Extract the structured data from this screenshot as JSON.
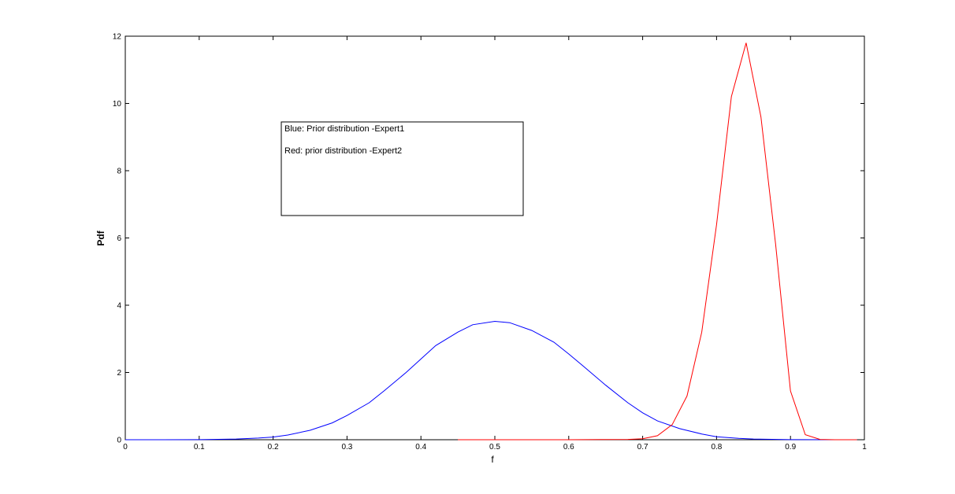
{
  "chart_data": {
    "type": "line",
    "title": "",
    "xlabel": "f",
    "ylabel": "Pdf",
    "xlim": [
      0,
      1
    ],
    "ylim": [
      0,
      12
    ],
    "grid": false,
    "xticks": [
      0,
      0.1,
      0.2,
      0.3,
      0.4,
      0.5,
      0.6,
      0.7,
      0.8,
      0.9,
      1
    ],
    "xtick_labels": [
      "0",
      "0.1",
      "0.2",
      "0.3",
      "0.4",
      "0.5",
      "0.6",
      "0.7",
      "0.8",
      "0.9",
      "1"
    ],
    "yticks": [
      0,
      2,
      4,
      6,
      8,
      10,
      12
    ],
    "ytick_labels": [
      "0",
      "2",
      "4",
      "6",
      "8",
      "10",
      "12"
    ],
    "annotation": {
      "lines": [
        "Blue: Prior distribution -Expert1",
        "Red: prior distribution -Expert2"
      ]
    },
    "series": [
      {
        "color": "#0000ff",
        "x": [
          0,
          0.05,
          0.1,
          0.15,
          0.18,
          0.2,
          0.22,
          0.25,
          0.28,
          0.3,
          0.33,
          0.35,
          0.38,
          0.4,
          0.42,
          0.45,
          0.47,
          0.5,
          0.52,
          0.55,
          0.58,
          0.6,
          0.62,
          0.65,
          0.68,
          0.7,
          0.72,
          0.75,
          0.78,
          0.8,
          0.83,
          0.85,
          0.9,
          0.95,
          0.99
        ],
        "y": [
          0,
          0,
          0.003,
          0.02,
          0.05,
          0.08,
          0.14,
          0.28,
          0.5,
          0.72,
          1.1,
          1.45,
          2.0,
          2.4,
          2.8,
          3.2,
          3.42,
          3.52,
          3.48,
          3.25,
          2.9,
          2.55,
          2.18,
          1.62,
          1.1,
          0.8,
          0.56,
          0.33,
          0.17,
          0.09,
          0.04,
          0.02,
          0.003,
          0,
          0
        ]
      },
      {
        "color": "#ff0000",
        "x": [
          0.45,
          0.5,
          0.6,
          0.68,
          0.7,
          0.72,
          0.74,
          0.76,
          0.78,
          0.8,
          0.82,
          0.84,
          0.86,
          0.88,
          0.9,
          0.92,
          0.94,
          0.96,
          0.99
        ],
        "y": [
          0,
          0,
          0,
          0.01,
          0.03,
          0.12,
          0.45,
          1.3,
          3.2,
          6.4,
          10.2,
          11.8,
          9.6,
          5.8,
          1.45,
          0.15,
          0.01,
          0,
          0
        ]
      }
    ]
  }
}
